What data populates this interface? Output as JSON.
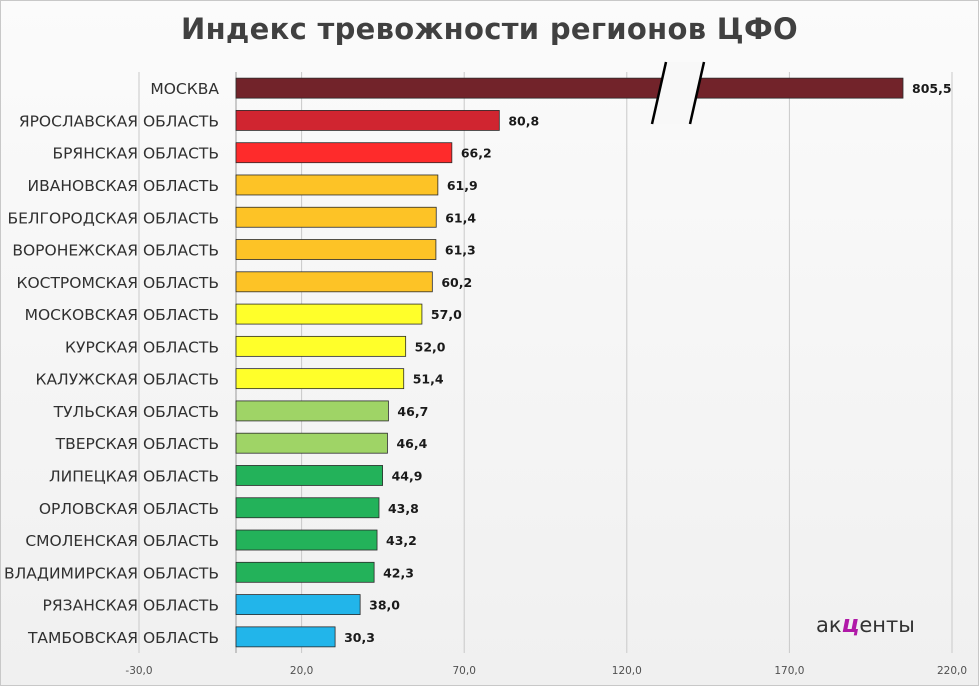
{
  "chart_data": {
    "type": "bar",
    "orientation": "horizontal",
    "title": "Индекс тревожности регионов ЦФО",
    "xlabel": "",
    "ylabel": "",
    "xlim": [
      -30,
      220
    ],
    "x_ticks": [
      "-30,0",
      "20,0",
      "70,0",
      "120,0",
      "170,0",
      "220,0"
    ],
    "x_tick_values": [
      -30,
      20,
      70,
      120,
      170,
      220
    ],
    "axis_break": true,
    "grid": true,
    "legend": "none",
    "categories": [
      "МОСКВА",
      "ЯРОСЛАВСКАЯ ОБЛАСТЬ",
      "БРЯНСКАЯ ОБЛАСТЬ",
      "ИВАНОВСКАЯ ОБЛАСТЬ",
      "БЕЛГОРОДСКАЯ ОБЛАСТЬ",
      "ВОРОНЕЖСКАЯ ОБЛАСТЬ",
      "КОСТРОМСКАЯ ОБЛАСТЬ",
      "МОСКОВСКАЯ ОБЛАСТЬ",
      "КУРСКАЯ ОБЛАСТЬ",
      "КАЛУЖСКАЯ ОБЛАСТЬ",
      "ТУЛЬСКАЯ ОБЛАСТЬ",
      "ТВЕРСКАЯ ОБЛАСТЬ",
      "ЛИПЕЦКАЯ ОБЛАСТЬ",
      "ОРЛОВСКАЯ ОБЛАСТЬ",
      "СМОЛЕНСКАЯ ОБЛАСТЬ",
      "ВЛАДИМИРСКАЯ ОБЛАСТЬ",
      "РЯЗАНСКАЯ ОБЛАСТЬ",
      "ТАМБОВСКАЯ ОБЛАСТЬ"
    ],
    "values": [
      805.5,
      80.8,
      66.2,
      61.9,
      61.4,
      61.3,
      60.2,
      57.0,
      52.0,
      51.4,
      46.7,
      46.4,
      44.9,
      43.8,
      43.2,
      42.3,
      38.0,
      30.3
    ],
    "value_labels": [
      "805,5",
      "80,8",
      "66,2",
      "61,9",
      "61,4",
      "61,3",
      "60,2",
      "57,0",
      "52,0",
      "51,4",
      "46,7",
      "46,4",
      "44,9",
      "43,8",
      "43,2",
      "42,3",
      "38,0",
      "30,3"
    ],
    "colors": [
      "#72232a",
      "#d02530",
      "#fe2b2b",
      "#fdc326",
      "#fdc326",
      "#fdc326",
      "#fdc326",
      "#ffff2a",
      "#ffff2a",
      "#ffff2a",
      "#9fd466",
      "#9fd466",
      "#23b25a",
      "#23b25a",
      "#23b25a",
      "#23b25a",
      "#22b5ea",
      "#22b5ea"
    ]
  },
  "logo": {
    "prefix": "ак",
    "accent": "ц",
    "suffix": "енты",
    "accent_color": "#b019a7"
  }
}
